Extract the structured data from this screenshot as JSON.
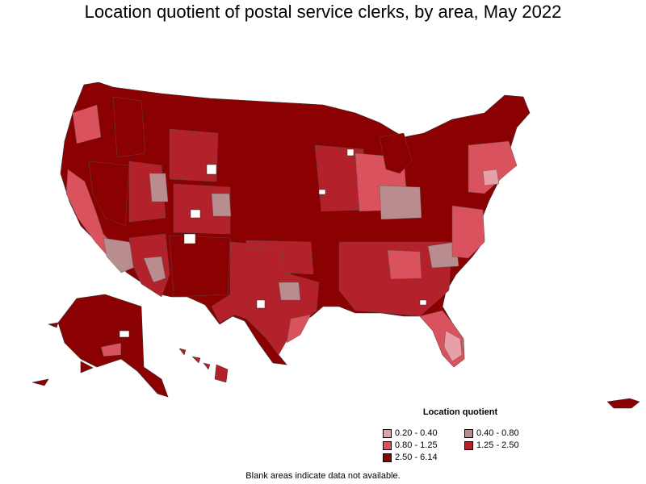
{
  "title": "Location quotient of postal service clerks, by area, May 2022",
  "legend": {
    "title": "Location quotient",
    "items": [
      {
        "label": "0.20 - 0.40",
        "color": "#e8a0a8"
      },
      {
        "label": "0.40 - 0.80",
        "color": "#b98c8f"
      },
      {
        "label": "0.80 - 1.25",
        "color": "#d9525d"
      },
      {
        "label": "1.25 - 2.50",
        "color": "#b3212a"
      },
      {
        "label": "2.50 - 6.14",
        "color": "#8b0000"
      }
    ]
  },
  "footnote": "Blank areas indicate data not available."
}
